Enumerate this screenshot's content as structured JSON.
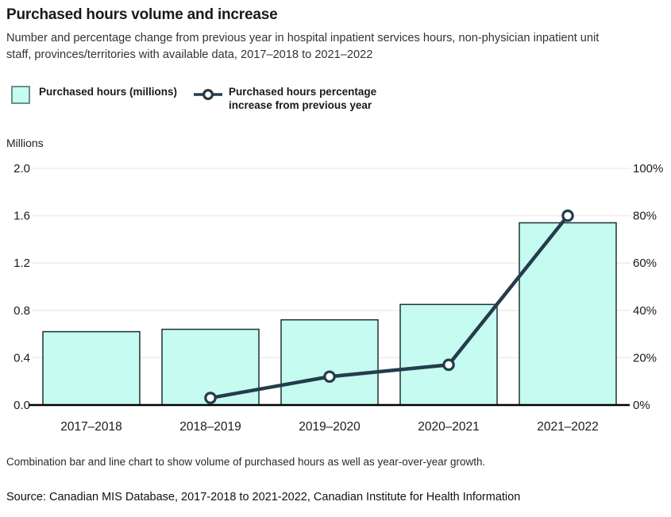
{
  "header": {
    "title": "Purchased hours volume and increase",
    "subtitle": "Number and percentage change from previous year in hospital inpatient services hours, non-physician inpatient unit staff, provinces/territories with available data, 2017–2018 to 2021–2022"
  },
  "legend": {
    "bar_label": "Purchased hours (millions)",
    "line_label": "Purchased hours percentage increase from previous year"
  },
  "axis_unit_label": "Millions",
  "chart_data": {
    "type": "bar",
    "subtype": "combo bar + line, dual axis",
    "categories": [
      "2017–2018",
      "2018–2019",
      "2019–2020",
      "2020–2021",
      "2021–2022"
    ],
    "series": [
      {
        "name": "Purchased hours (millions)",
        "type": "bar",
        "axis": "left",
        "values": [
          0.62,
          0.64,
          0.72,
          0.85,
          1.54
        ]
      },
      {
        "name": "Purchased hours percentage increase from previous year",
        "type": "line",
        "axis": "right",
        "values": [
          null,
          3,
          12,
          17,
          80
        ]
      }
    ],
    "title": "Purchased hours volume and increase",
    "left_axis": {
      "label": "Millions",
      "min": 0,
      "max": 2,
      "ticks": [
        "0.0",
        "0.4",
        "0.8",
        "1.2",
        "1.6",
        "2.0"
      ]
    },
    "right_axis": {
      "min": 0,
      "max": 100,
      "ticks": [
        "0%",
        "20%",
        "40%",
        "60%",
        "80%",
        "100%"
      ]
    },
    "grid": true,
    "legend_position": "top-left"
  },
  "colors": {
    "bar_fill": "#c5fbf1",
    "bar_border": "#1b3338",
    "line": "#243c4b",
    "marker_fill": "#ffffff",
    "grid": "#f2ecec",
    "axis": "#000000",
    "text": "#1a1a1a",
    "swatch_border": "#6e8f8c"
  },
  "footer": {
    "caption": "Combination bar and line chart to show volume of purchased hours as well as year-over-year growth.",
    "source": "Source: Canadian MIS Database, 2017-2018 to 2021-2022, Canadian Institute for Health Information"
  }
}
